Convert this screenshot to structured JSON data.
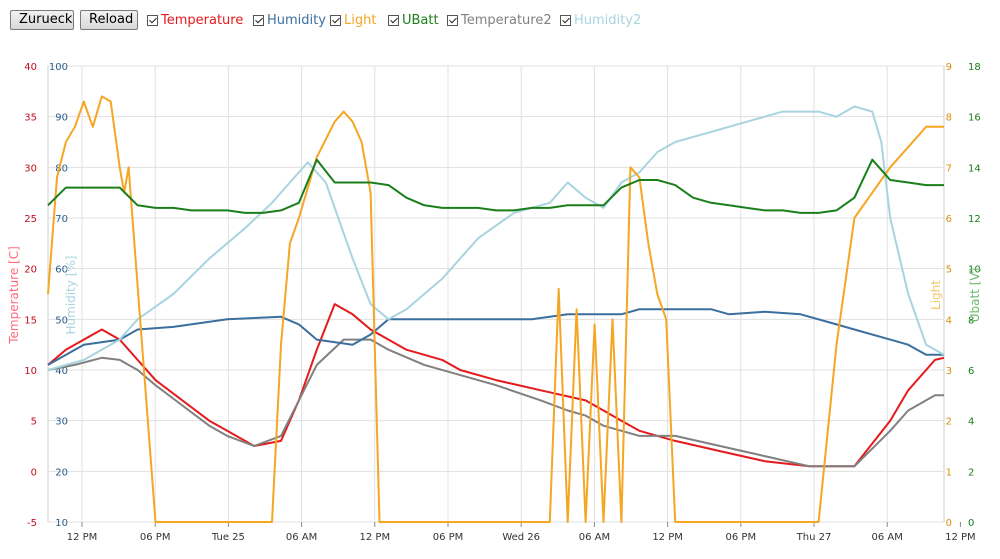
{
  "toolbar": {
    "back_label": "Zurueck",
    "reload_label": "Reload",
    "toggles": [
      {
        "label": "Temperature",
        "color": "#e41a1c",
        "checked": true
      },
      {
        "label": "Humidity",
        "color": "#3b6f9e",
        "checked": true
      },
      {
        "label": "Light",
        "color": "#f5a623",
        "checked": true
      },
      {
        "label": "UBatt",
        "color": "#1a7f1a",
        "checked": true
      },
      {
        "label": "Temperature2",
        "color": "#808080",
        "checked": true
      },
      {
        "label": "Humidity2",
        "color": "#a8d4e0",
        "checked": true
      }
    ]
  },
  "chart_data": {
    "type": "line",
    "grid": true,
    "x_ticks": [
      "12 PM",
      "06 PM",
      "Tue 25",
      "06 AM",
      "12 PM",
      "06 PM",
      "Wed 26",
      "06 AM",
      "12 PM",
      "06 PM",
      "Thu 27",
      "06 AM",
      "12 PM"
    ],
    "axes": {
      "temperature": {
        "label": "Temperature [C]",
        "range": [
          -5,
          40
        ],
        "ticks": [
          "-5",
          "0",
          "5",
          "10",
          "15",
          "20",
          "25",
          "30",
          "35",
          "40"
        ],
        "color": "#c0101e"
      },
      "humidity": {
        "label": "Humidity [%]",
        "range": [
          10,
          100
        ],
        "ticks": [
          "10",
          "20",
          "30",
          "40",
          "50",
          "60",
          "70",
          "80",
          "90",
          "100"
        ],
        "color": "#2a5d8c"
      },
      "light": {
        "label": "Light",
        "range": [
          0,
          9
        ],
        "ticks": [
          "0",
          "1",
          "2",
          "3",
          "4",
          "5",
          "6",
          "7",
          "8",
          "9"
        ],
        "color": "#d9900a"
      },
      "ubatt": {
        "label": "Ubatt [V]",
        "range": [
          0,
          18
        ],
        "ticks": [
          "0",
          "2",
          "4",
          "6",
          "8",
          "10",
          "12",
          "14",
          "16",
          "18"
        ],
        "color": "#1a7f1a"
      }
    },
    "series": [
      {
        "name": "Temperature",
        "axis": "temperature",
        "color": "#e41a1c",
        "x": [
          0,
          2,
          4,
          6,
          7,
          8,
          10,
          12,
          15,
          18,
          20,
          23,
          26,
          28,
          30,
          32,
          34,
          36,
          38,
          40,
          42,
          44,
          46,
          50,
          55,
          60,
          62,
          64,
          66,
          70,
          75,
          80,
          85,
          90,
          94,
          96,
          99,
          100
        ],
        "y": [
          10.5,
          12,
          13,
          14,
          13.5,
          13,
          11,
          9,
          7,
          5,
          4,
          2.5,
          3,
          7,
          12,
          16.5,
          15.5,
          14,
          13,
          12,
          11.5,
          11,
          10,
          9,
          8,
          7,
          6,
          5,
          4,
          3,
          2,
          1,
          0.5,
          0.5,
          5,
          8,
          11,
          11.2
        ]
      },
      {
        "name": "Temperature2",
        "axis": "temperature",
        "color": "#808080",
        "x": [
          0,
          3,
          6,
          8,
          10,
          12,
          15,
          18,
          20,
          23,
          26,
          28,
          30,
          33,
          36,
          38,
          42,
          46,
          50,
          55,
          58,
          60,
          62,
          64,
          66,
          70,
          75,
          80,
          85,
          90,
          94,
          96,
          99,
          100
        ],
        "y": [
          10,
          10.5,
          11.2,
          11,
          10,
          8.5,
          6.5,
          4.5,
          3.5,
          2.5,
          3.5,
          7,
          10.5,
          13,
          13,
          12,
          10.5,
          9.5,
          8.5,
          7,
          6,
          5.5,
          4.5,
          4,
          3.5,
          3.5,
          2.5,
          1.5,
          0.5,
          0.5,
          4,
          6,
          7.5,
          7.5
        ]
      },
      {
        "name": "Humidity",
        "axis": "humidity",
        "color": "#3b6f9e",
        "x": [
          0,
          4,
          8,
          10,
          14,
          20,
          26,
          28,
          30,
          34,
          36,
          38,
          42,
          46,
          50,
          54,
          58,
          60,
          62,
          64,
          66,
          70,
          74,
          76,
          80,
          84,
          88,
          90,
          94,
          96,
          98,
          100
        ],
        "y": [
          41,
          45,
          46,
          48,
          48.5,
          50,
          50.5,
          49,
          46,
          45,
          47,
          50,
          50,
          50,
          50,
          50,
          51,
          51,
          51,
          51,
          52,
          52,
          52,
          51,
          51.5,
          51,
          49,
          48,
          46,
          45,
          43,
          43
        ]
      },
      {
        "name": "Humidity2",
        "axis": "humidity",
        "color": "#a8d4e0",
        "x": [
          0,
          4,
          8,
          10,
          14,
          18,
          22,
          25,
          27,
          29,
          31,
          34,
          36,
          38,
          40,
          44,
          48,
          52,
          56,
          58,
          60,
          62,
          64,
          66,
          68,
          70,
          74,
          78,
          82,
          86,
          88,
          90,
          92,
          93,
          94,
          96,
          98,
          100
        ],
        "y": [
          40,
          42,
          46,
          50,
          55,
          62,
          68,
          73,
          77,
          81,
          77,
          62,
          53,
          50,
          52,
          58,
          66,
          71,
          73,
          77,
          74,
          72,
          77,
          79,
          83,
          85,
          87,
          89,
          91,
          91,
          90,
          92,
          91,
          85,
          70,
          55,
          45,
          43
        ]
      },
      {
        "name": "Light",
        "axis": "light",
        "color": "#f5a623",
        "x": [
          0,
          1,
          2,
          3,
          4,
          5,
          6,
          7,
          8,
          8.5,
          9,
          9.3,
          12,
          13,
          20,
          25,
          26,
          27,
          28,
          30,
          32,
          33,
          34,
          35,
          36,
          37,
          37.5,
          38,
          40,
          50,
          55,
          56,
          57,
          58,
          59,
          60,
          61,
          62,
          63,
          64,
          65,
          66,
          67,
          68,
          69,
          70,
          80,
          84,
          85,
          86,
          88,
          90,
          92,
          94,
          96,
          98,
          100
        ],
        "y": [
          4.5,
          6.8,
          7.5,
          7.8,
          8.3,
          7.8,
          8.4,
          8.3,
          7,
          6.5,
          7,
          6.3,
          0,
          0,
          0,
          0,
          3.5,
          5.5,
          6,
          7.2,
          7.9,
          8.1,
          7.9,
          7.5,
          6.5,
          0,
          0,
          0,
          0,
          0,
          0,
          0,
          4.6,
          0,
          4.2,
          0,
          3.9,
          0,
          4.0,
          0,
          7.0,
          6.8,
          5.5,
          4.5,
          4.0,
          0,
          0,
          0,
          0,
          0,
          3.5,
          6.0,
          6.5,
          7.0,
          7.4,
          7.8,
          7.8
        ]
      },
      {
        "name": "UBatt",
        "axis": "ubatt",
        "color": "#1a7f1a",
        "x": [
          0,
          2,
          4,
          6,
          8,
          10,
          12,
          14,
          16,
          18,
          20,
          22,
          24,
          26,
          28,
          30,
          32,
          34,
          36,
          38,
          40,
          42,
          44,
          46,
          48,
          50,
          52,
          54,
          56,
          58,
          60,
          62,
          64,
          66,
          68,
          70,
          72,
          74,
          76,
          78,
          80,
          82,
          84,
          86,
          88,
          90,
          92,
          94,
          96,
          98,
          100
        ],
        "y": [
          12.5,
          13.2,
          13.2,
          13.2,
          13.2,
          12.5,
          12.4,
          12.4,
          12.3,
          12.3,
          12.3,
          12.2,
          12.2,
          12.3,
          12.6,
          14.3,
          13.4,
          13.4,
          13.4,
          13.3,
          12.8,
          12.5,
          12.4,
          12.4,
          12.4,
          12.3,
          12.3,
          12.4,
          12.4,
          12.5,
          12.5,
          12.5,
          13.2,
          13.5,
          13.5,
          13.3,
          12.8,
          12.6,
          12.5,
          12.4,
          12.3,
          12.3,
          12.2,
          12.2,
          12.3,
          12.8,
          14.3,
          13.5,
          13.4,
          13.3,
          13.3
        ]
      }
    ]
  }
}
